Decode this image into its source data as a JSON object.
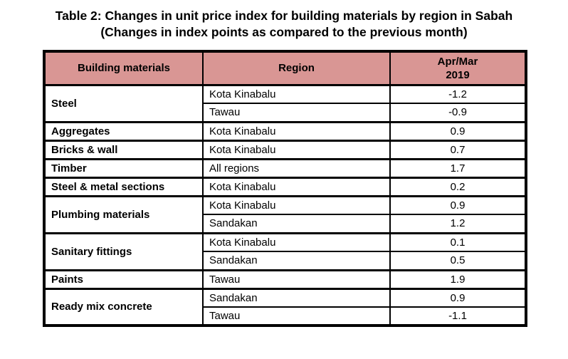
{
  "title": {
    "line1": "Table 2: Changes in unit price index for building materials by region in Sabah",
    "line2": "(Changes in index points as compared to the previous month)"
  },
  "table": {
    "headers": {
      "materials": "Building materials",
      "region": "Region",
      "period_line1": "Apr/Mar",
      "period_line2": "2019"
    },
    "groups": [
      {
        "material": "Steel",
        "rows": [
          {
            "region": "Kota Kinabalu",
            "value": "-1.2"
          },
          {
            "region": "Tawau",
            "value": "-0.9"
          }
        ]
      },
      {
        "material": "Aggregates",
        "rows": [
          {
            "region": "Kota Kinabalu",
            "value": "0.9"
          }
        ]
      },
      {
        "material": "Bricks & wall",
        "rows": [
          {
            "region": "Kota Kinabalu",
            "value": "0.7"
          }
        ]
      },
      {
        "material": "Timber",
        "rows": [
          {
            "region": "All regions",
            "value": "1.7"
          }
        ]
      },
      {
        "material": "Steel & metal sections",
        "rows": [
          {
            "region": "Kota Kinabalu",
            "value": "0.2"
          }
        ]
      },
      {
        "material": "Plumbing materials",
        "rows": [
          {
            "region": "Kota Kinabalu",
            "value": "0.9"
          },
          {
            "region": "Sandakan",
            "value": "1.2"
          }
        ]
      },
      {
        "material": "Sanitary fittings",
        "rows": [
          {
            "region": "Kota Kinabalu",
            "value": "0.1"
          },
          {
            "region": "Sandakan",
            "value": "0.5"
          }
        ]
      },
      {
        "material": "Paints",
        "rows": [
          {
            "region": "Tawau",
            "value": "1.9"
          }
        ]
      },
      {
        "material": "Ready mix concrete",
        "rows": [
          {
            "region": "Sandakan",
            "value": "0.9"
          },
          {
            "region": "Tawau",
            "value": "-1.1"
          }
        ]
      }
    ]
  },
  "colors": {
    "header_bg": "#d99694",
    "border": "#000000",
    "text": "#000000",
    "page_bg": "#ffffff"
  }
}
